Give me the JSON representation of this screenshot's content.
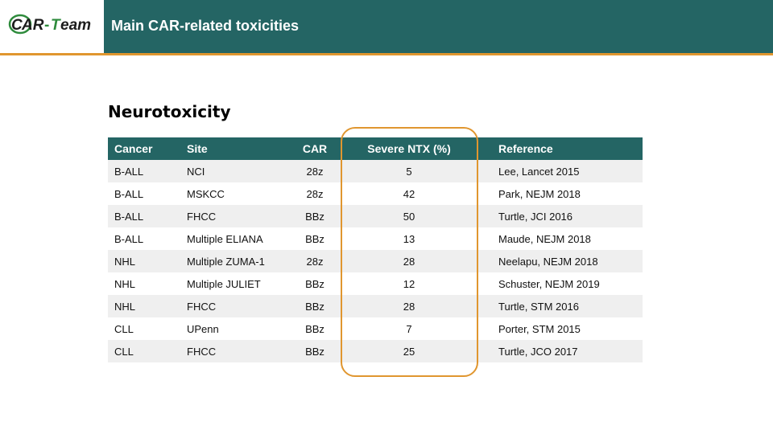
{
  "header": {
    "logo_text": "CAR-Team",
    "title": "Main CAR-related toxicities"
  },
  "colors": {
    "brand_teal": "#246564",
    "accent_orange": "#e0962f",
    "logo_green": "#2e8b3c"
  },
  "section_title": "Neurotoxicity",
  "table": {
    "columns": [
      "Cancer",
      "Site",
      "CAR",
      "Severe NTX (%)",
      "Reference"
    ],
    "rows": [
      [
        "B-ALL",
        "NCI",
        "28z",
        "5",
        "Lee, Lancet 2015"
      ],
      [
        "B-ALL",
        "MSKCC",
        "28z",
        "42",
        "Park, NEJM 2018"
      ],
      [
        "B-ALL",
        "FHCC",
        "BBz",
        "50",
        "Turtle, JCI 2016"
      ],
      [
        "B-ALL",
        "Multiple ELIANA",
        "BBz",
        "13",
        "Maude, NEJM 2018"
      ],
      [
        "NHL",
        "Multiple ZUMA-1",
        "28z",
        "28",
        "Neelapu, NEJM 2018"
      ],
      [
        "NHL",
        "Multiple JULIET",
        "BBz",
        "12",
        "Schuster, NEJM 2019"
      ],
      [
        "NHL",
        "FHCC",
        "BBz",
        "28",
        "Turtle, STM 2016"
      ],
      [
        "CLL",
        "UPenn",
        "BBz",
        "7",
        "Porter, STM 2015"
      ],
      [
        "CLL",
        "FHCC",
        "BBz",
        "25",
        "Turtle, JCO 2017"
      ]
    ]
  }
}
